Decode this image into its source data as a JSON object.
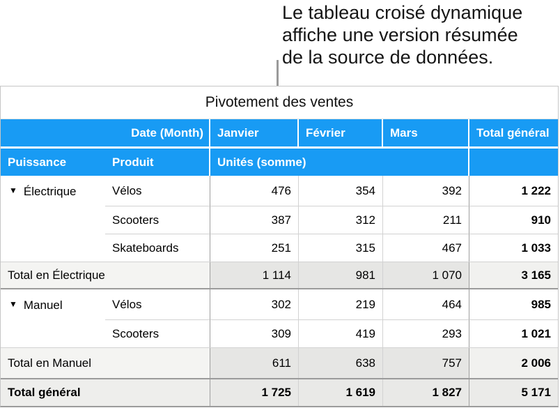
{
  "annotation": {
    "lines": [
      "Le tableau croisé dynamique",
      "affiche une version résumée",
      "de la source de données."
    ]
  },
  "table": {
    "title": "Pivotement des ventes",
    "header_row1": {
      "label": "Date (Month)",
      "columns": [
        "Janvier",
        "Février",
        "Mars",
        "Total général"
      ]
    },
    "header_row2": {
      "row_field": "Puissance",
      "column_field": "Produit",
      "values_label": "Unités (somme)"
    },
    "groups": [
      {
        "name": "Électrique",
        "disclosure_icon": "triangle-down-icon",
        "rows": [
          {
            "product": "Vélos",
            "values": [
              "476",
              "354",
              "392"
            ],
            "total": "1 222"
          },
          {
            "product": "Scooters",
            "values": [
              "387",
              "312",
              "211"
            ],
            "total": "910"
          },
          {
            "product": "Skateboards",
            "values": [
              "251",
              "315",
              "467"
            ],
            "total": "1 033"
          }
        ],
        "subtotal": {
          "label": "Total en Électrique",
          "values": [
            "1 114",
            "981",
            "1 070"
          ],
          "total": "3 165"
        }
      },
      {
        "name": "Manuel",
        "disclosure_icon": "triangle-down-icon",
        "rows": [
          {
            "product": "Vélos",
            "values": [
              "302",
              "219",
              "464"
            ],
            "total": "985"
          },
          {
            "product": "Scooters",
            "values": [
              "309",
              "419",
              "293"
            ],
            "total": "1 021"
          }
        ],
        "subtotal": {
          "label": "Total en Manuel",
          "values": [
            "611",
            "638",
            "757"
          ],
          "total": "2 006"
        }
      }
    ],
    "grand_total": {
      "label": "Total général",
      "values": [
        "1 725",
        "1 619",
        "1 827"
      ],
      "total": "5 171"
    }
  },
  "colors": {
    "header_blue": "#189bf4",
    "line_light": "#d2d2d2",
    "line_strong": "#9f9f9f",
    "dark_line": "#9b9b9b",
    "outer_border": "#c6c6c6",
    "callout_line": "#9a9a9a",
    "sub_label_bg": "#f4f4f2",
    "sub_val_bg": "#e6e6e4",
    "sub_total_bg": "#f1f1ef",
    "grand_label_bg": "#eeeeec",
    "grand_val_bg": "#e9e9e7",
    "grand_total_bg": "#ebebe9"
  }
}
